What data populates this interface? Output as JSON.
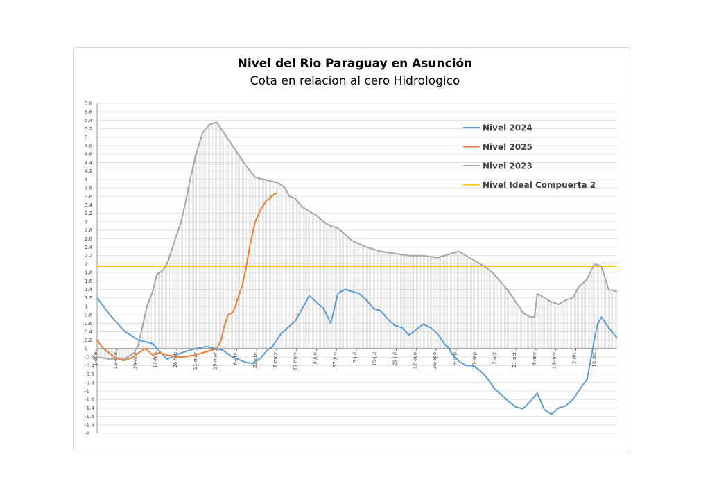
{
  "chart_data": {
    "type": "line",
    "title": "Nivel del Rio Paraguay en Asunción",
    "subtitle": "Cota en relacion al cero Hidrologico",
    "xlabel": "",
    "ylabel": "",
    "ylim": [
      -2,
      5.8
    ],
    "y_ticks": [
      "5.8",
      "5.6",
      "5.4",
      "5.2",
      "5",
      "4.8",
      "4.6",
      "4.4",
      "4.2",
      "4",
      "3.8",
      "3.6",
      "3.4",
      "3.2",
      "3",
      "2.8",
      "2.6",
      "2.4",
      "2.2",
      "2",
      "1.8",
      "1.6",
      "1.4",
      "1.2",
      "1",
      "0.8",
      "0.6",
      "0.4",
      "0.2",
      "0",
      "-0.2",
      "-0.4",
      "-0.6",
      "-0.8",
      "-1",
      "-1.2",
      "-1.4",
      "-1.6",
      "-1.8",
      "-2"
    ],
    "x_ticks": [
      {
        "label": "1-ene",
        "day": 1
      },
      {
        "label": "15-ene",
        "day": 15
      },
      {
        "label": "29-ene",
        "day": 29
      },
      {
        "label": "12-feb",
        "day": 43
      },
      {
        "label": "26-feb",
        "day": 57
      },
      {
        "label": "11-mar",
        "day": 71
      },
      {
        "label": "25-mar",
        "day": 85
      },
      {
        "label": "8-abr",
        "day": 99
      },
      {
        "label": "22-abr",
        "day": 113
      },
      {
        "label": "6-may",
        "day": 127
      },
      {
        "label": "20-may",
        "day": 141
      },
      {
        "label": "3-jun",
        "day": 155
      },
      {
        "label": "17-jun",
        "day": 169
      },
      {
        "label": "1-jul",
        "day": 183
      },
      {
        "label": "15-jul",
        "day": 197
      },
      {
        "label": "29-jul",
        "day": 211
      },
      {
        "label": "12-ago",
        "day": 225
      },
      {
        "label": "26-ago",
        "day": 239
      },
      {
        "label": "9-sep",
        "day": 253
      },
      {
        "label": "23-sep",
        "day": 267
      },
      {
        "label": "7-oct",
        "day": 281
      },
      {
        "label": "21-oct",
        "day": 295
      },
      {
        "label": "4-nov",
        "day": 309
      },
      {
        "label": "18-nov",
        "day": 323
      },
      {
        "label": "2-dic",
        "day": 337
      },
      {
        "label": "16-dic",
        "day": 351
      }
    ],
    "x_range_days": [
      1,
      366
    ],
    "grid": "horizontal",
    "legend_position": "top-right",
    "series": [
      {
        "name": "Nivel 2024",
        "color": "#5b9bd5",
        "days": [
          1,
          10,
          20,
          30,
          40,
          50,
          60,
          70,
          78,
          85,
          90,
          95,
          100,
          105,
          110,
          116,
          120,
          124,
          130,
          140,
          150,
          160,
          165,
          170,
          175,
          180,
          185,
          190,
          195,
          200,
          205,
          210,
          215,
          220,
          225,
          230,
          235,
          240,
          245,
          248,
          250,
          255,
          260,
          263,
          265,
          270,
          275,
          280,
          285,
          290,
          295,
          300,
          305,
          310,
          315,
          320,
          325,
          330,
          335,
          340,
          345,
          350,
          352,
          355,
          360,
          366
        ],
        "values": [
          1.2,
          0.8,
          0.42,
          0.2,
          0.12,
          -0.25,
          -0.1,
          0.0,
          0.05,
          0.0,
          -0.05,
          -0.18,
          -0.25,
          -0.32,
          -0.35,
          -0.22,
          -0.05,
          0.05,
          0.35,
          0.65,
          1.25,
          0.95,
          0.6,
          1.3,
          1.4,
          1.35,
          1.3,
          1.15,
          0.95,
          0.9,
          0.7,
          0.55,
          0.5,
          0.32,
          0.45,
          0.58,
          0.5,
          0.35,
          0.1,
          0.02,
          -0.12,
          -0.3,
          -0.4,
          -0.4,
          -0.4,
          -0.52,
          -0.7,
          -0.95,
          -1.1,
          -1.25,
          -1.38,
          -1.42,
          -1.25,
          -1.05,
          -1.45,
          -1.55,
          -1.4,
          -1.35,
          -1.2,
          -0.95,
          -0.72,
          0.2,
          0.55,
          0.75,
          0.5,
          0.25
        ]
      },
      {
        "name": "Nivel 2025",
        "color": "#ed7d31",
        "days": [
          1,
          5,
          10,
          15,
          20,
          25,
          30,
          35,
          40,
          45,
          50,
          55,
          60,
          65,
          70,
          75,
          80,
          85,
          88,
          90,
          93,
          96,
          98,
          100,
          103,
          106,
          108,
          110,
          112,
          114,
          116,
          118,
          120,
          122,
          124,
          127
        ],
        "values": [
          0.2,
          0.02,
          -0.12,
          -0.25,
          -0.28,
          -0.22,
          -0.1,
          0.0,
          -0.15,
          -0.1,
          -0.15,
          -0.18,
          -0.2,
          -0.18,
          -0.15,
          -0.1,
          -0.05,
          0.0,
          0.2,
          0.5,
          0.8,
          0.85,
          1.0,
          1.2,
          1.5,
          2.0,
          2.4,
          2.7,
          3.0,
          3.15,
          3.3,
          3.4,
          3.5,
          3.55,
          3.62,
          3.68
        ]
      },
      {
        "name": "Nivel 2023",
        "color": "#a5a5a5",
        "days": [
          1,
          10,
          20,
          27,
          30,
          33,
          36,
          40,
          43,
          47,
          50,
          53,
          56,
          60,
          63,
          66,
          70,
          75,
          80,
          85,
          88,
          92,
          96,
          100,
          106,
          112,
          118,
          124,
          128,
          133,
          136,
          140,
          145,
          150,
          155,
          160,
          165,
          170,
          180,
          190,
          200,
          210,
          220,
          230,
          240,
          250,
          255,
          260,
          265,
          270,
          275,
          280,
          285,
          290,
          300,
          305,
          308,
          310,
          315,
          320,
          325,
          330,
          335,
          338,
          340,
          342,
          345,
          350,
          355,
          360,
          366
        ],
        "values": [
          -0.2,
          -0.25,
          -0.25,
          -0.1,
          0.1,
          0.55,
          1.0,
          1.35,
          1.75,
          1.85,
          2.0,
          2.3,
          2.6,
          3.0,
          3.45,
          3.95,
          4.55,
          5.1,
          5.3,
          5.35,
          5.2,
          5.0,
          4.8,
          4.6,
          4.3,
          4.05,
          4.0,
          3.95,
          3.92,
          3.8,
          3.6,
          3.55,
          3.35,
          3.25,
          3.15,
          3.0,
          2.9,
          2.85,
          2.55,
          2.4,
          2.3,
          2.25,
          2.2,
          2.2,
          2.15,
          2.25,
          2.3,
          2.2,
          2.1,
          2.0,
          1.9,
          1.75,
          1.55,
          1.35,
          0.85,
          0.75,
          0.75,
          1.3,
          1.2,
          1.1,
          1.05,
          1.15,
          1.2,
          1.4,
          1.5,
          1.55,
          1.65,
          2.0,
          1.95,
          1.4,
          1.35
        ]
      },
      {
        "name": "Nivel Ideal Compuerta 2",
        "color": "#ffc000",
        "days": [
          1,
          366
        ],
        "values": [
          1.95,
          1.95
        ]
      }
    ]
  }
}
